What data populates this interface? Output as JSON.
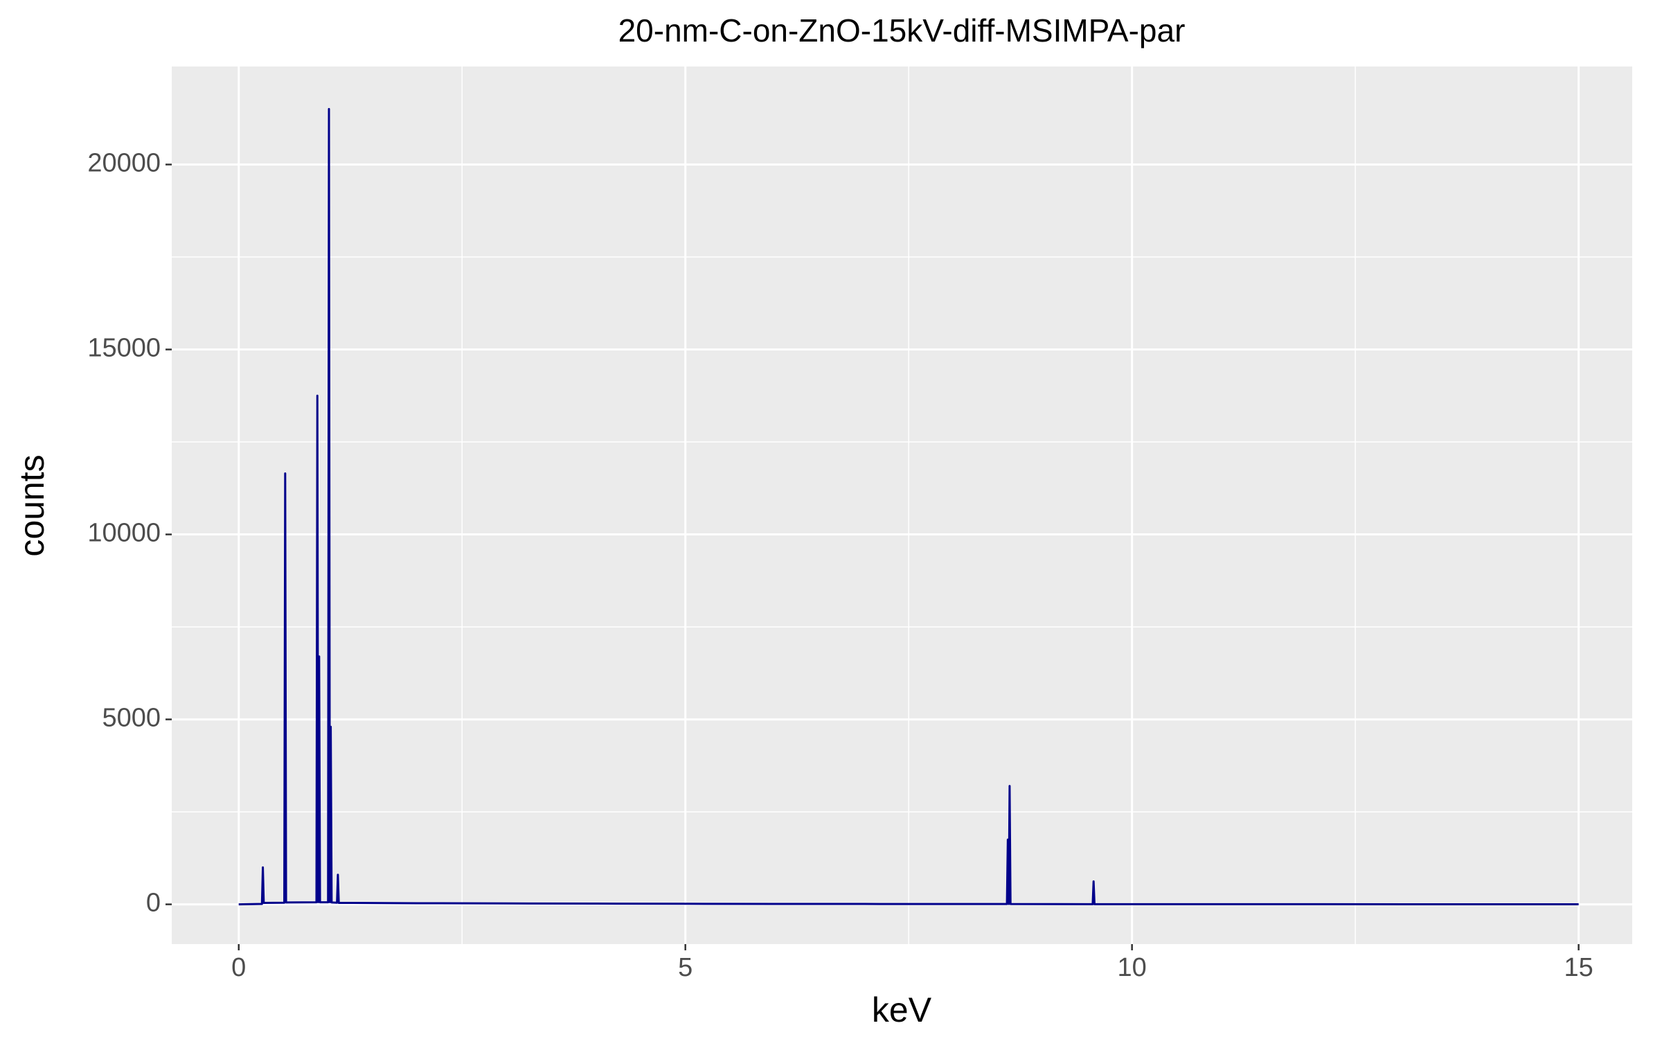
{
  "chart_data": {
    "type": "line",
    "title": "20-nm-C-on-ZnO-15kV-diff-MSIMPA-par",
    "x_label": "keV",
    "y_label": "counts",
    "x": [
      0,
      0.26,
      0.27,
      0.28,
      0.51,
      0.52,
      0.53,
      0.87,
      0.88,
      0.89,
      0.9,
      0.91,
      1.0,
      1.01,
      1.02,
      1.03,
      1.04,
      1.1,
      1.11,
      1.12,
      2,
      3,
      4,
      5,
      6,
      7,
      8,
      8.6,
      8.61,
      8.62,
      8.63,
      8.64,
      9.56,
      9.57,
      9.58,
      10,
      12,
      15
    ],
    "series": [
      {
        "color": "#00008b",
        "values": [
          0,
          10,
          1000,
          40,
          45,
          11650,
          50,
          55,
          13750,
          60,
          6700,
          55,
          55,
          21500,
          60,
          4800,
          50,
          45,
          800,
          40,
          30,
          25,
          20,
          15,
          12,
          10,
          8,
          8,
          1750,
          10,
          3200,
          8,
          5,
          620,
          5,
          4,
          3,
          2
        ]
      }
    ],
    "xlim": [
      -0.75,
      15.6
    ],
    "ylim": [
      -1075,
      22650
    ],
    "xticks": [
      0,
      5,
      10,
      15
    ],
    "yticks": [
      0,
      5000,
      10000,
      15000,
      20000
    ],
    "xminor": [
      2.5,
      7.5,
      12.5
    ],
    "yminor": [
      2500,
      7500,
      12500,
      17500
    ],
    "grid": true
  }
}
